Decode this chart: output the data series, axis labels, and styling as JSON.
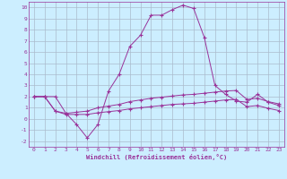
{
  "xlabel": "Windchill (Refroidissement éolien,°C)",
  "xlim": [
    -0.5,
    23.5
  ],
  "ylim": [
    -2.5,
    10.5
  ],
  "yticks": [
    -2,
    -1,
    0,
    1,
    2,
    3,
    4,
    5,
    6,
    7,
    8,
    9,
    10
  ],
  "xticks": [
    0,
    1,
    2,
    3,
    4,
    5,
    6,
    7,
    8,
    9,
    10,
    11,
    12,
    13,
    14,
    15,
    16,
    17,
    18,
    19,
    20,
    21,
    22,
    23
  ],
  "bg_color": "#cceeff",
  "line_color": "#993399",
  "grid_color": "#aabbcc",
  "line1_y": [
    2.0,
    2.0,
    2.0,
    0.5,
    -0.5,
    -1.7,
    -0.5,
    2.5,
    4.0,
    6.5,
    7.5,
    9.3,
    9.3,
    9.8,
    10.2,
    9.9,
    7.3,
    3.0,
    2.2,
    1.6,
    1.5,
    2.2,
    1.5,
    1.2
  ],
  "line2_y": [
    2.0,
    2.0,
    0.7,
    0.5,
    0.6,
    0.7,
    1.0,
    1.15,
    1.3,
    1.55,
    1.7,
    1.85,
    1.95,
    2.05,
    2.15,
    2.2,
    2.3,
    2.4,
    2.5,
    2.55,
    1.75,
    1.85,
    1.55,
    1.35
  ],
  "line3_y": [
    2.0,
    2.0,
    0.7,
    0.4,
    0.4,
    0.4,
    0.55,
    0.65,
    0.75,
    0.9,
    1.0,
    1.1,
    1.2,
    1.3,
    1.35,
    1.4,
    1.5,
    1.6,
    1.7,
    1.75,
    1.1,
    1.2,
    0.95,
    0.75
  ]
}
